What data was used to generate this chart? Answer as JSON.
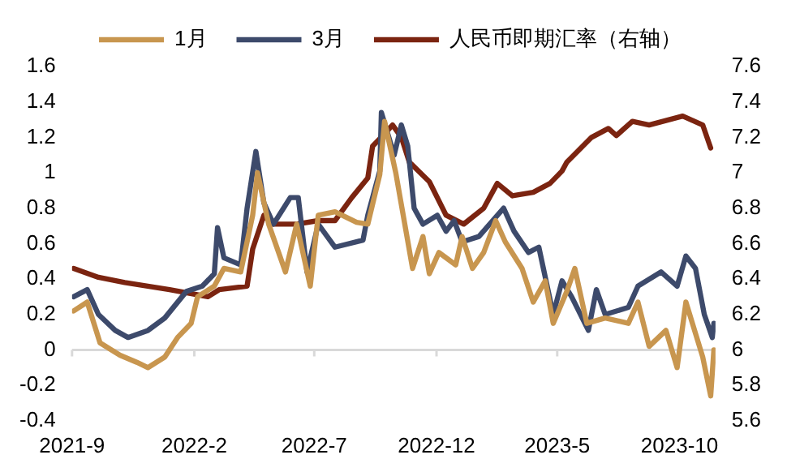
{
  "chart_data": {
    "type": "line",
    "legend": "top",
    "ref_lines": [
      {
        "axis": "y",
        "value": 0,
        "color": "#d9d9d9"
      }
    ],
    "marker": "none",
    "line_style": "solid",
    "grid": false,
    "xlim": [
      "2021-09",
      "2023-11-15"
    ],
    "xticks": [
      {
        "value": "2021-09",
        "label": "2021-9"
      },
      {
        "value": "2022-02",
        "label": "2022-2"
      },
      {
        "value": "2022-07",
        "label": "2022-7"
      },
      {
        "value": "2022-12",
        "label": "2022-12"
      },
      {
        "value": "2023-05",
        "label": "2023-5"
      },
      {
        "value": "2023-10",
        "label": "2023-10"
      }
    ],
    "ylim": [
      -0.4,
      1.6
    ],
    "yticks": [
      -0.4,
      -0.2,
      0,
      0.2,
      0.4,
      0.6,
      0.8,
      1,
      1.2,
      1.4,
      1.6
    ],
    "y2lim": [
      5.6,
      7.6
    ],
    "y2ticks": [
      5.6,
      5.8,
      6,
      6.2,
      6.4,
      6.6,
      6.8,
      7,
      7.2,
      7.4,
      7.6
    ],
    "series": [
      {
        "name": "1月",
        "color": "#c8964f",
        "x": [
          "2021-09-03",
          "2021-09-20",
          "2021-10-06",
          "2021-10-31",
          "2021-11-21",
          "2021-12-05",
          "2021-12-26",
          "2022-01-11",
          "2022-01-28",
          "2022-02-05",
          "2022-02-26",
          "2022-03-10",
          "2022-03-31",
          "2022-04-15",
          "2022-04-21",
          "2022-05-05",
          "2022-05-26",
          "2022-06-09",
          "2022-06-26",
          "2022-07-06",
          "2022-07-27",
          "2022-08-23",
          "2022-09-06",
          "2022-09-21",
          "2022-09-27",
          "2022-10-11",
          "2022-11-01",
          "2022-11-14",
          "2022-11-22",
          "2022-12-04",
          "2022-12-25",
          "2023-01-02",
          "2023-01-15",
          "2023-01-29",
          "2023-02-13",
          "2023-02-25",
          "2023-03-18",
          "2023-04-01",
          "2023-04-16",
          "2023-04-26",
          "2023-05-13",
          "2023-05-23",
          "2023-06-07",
          "2023-06-30",
          "2023-07-29",
          "2023-08-10",
          "2023-08-24",
          "2023-09-14",
          "2023-09-28",
          "2023-10-09",
          "2023-10-30",
          "2023-11-09",
          "2023-11-13"
        ],
        "values": [
          0.22,
          0.27,
          0.04,
          -0.03,
          -0.07,
          -0.1,
          -0.04,
          0.07,
          0.15,
          0.3,
          0.36,
          0.46,
          0.44,
          0.76,
          1.0,
          0.71,
          0.44,
          0.71,
          0.36,
          0.76,
          0.78,
          0.72,
          0.71,
          0.99,
          1.29,
          1.0,
          0.46,
          0.64,
          0.43,
          0.55,
          0.48,
          0.64,
          0.46,
          0.55,
          0.73,
          0.61,
          0.46,
          0.27,
          0.39,
          0.15,
          0.33,
          0.46,
          0.15,
          0.18,
          0.15,
          0.27,
          0.02,
          0.11,
          -0.1,
          0.27,
          -0.04,
          -0.26,
          0.0
        ]
      },
      {
        "name": "3月",
        "color": "#3d4a6b",
        "x": [
          "2021-09-03",
          "2021-09-20",
          "2021-10-04",
          "2021-10-25",
          "2021-11-10",
          "2021-12-05",
          "2021-12-26",
          "2022-01-22",
          "2022-02-11",
          "2022-02-26",
          "2022-03-02",
          "2022-03-10",
          "2022-03-31",
          "2022-04-08",
          "2022-04-19",
          "2022-04-29",
          "2022-05-11",
          "2022-06-01",
          "2022-06-11",
          "2022-06-22",
          "2022-07-06",
          "2022-07-27",
          "2022-08-31",
          "2022-09-06",
          "2022-09-21",
          "2022-09-23",
          "2022-10-09",
          "2022-10-18",
          "2022-10-26",
          "2022-11-03",
          "2022-11-14",
          "2022-12-02",
          "2022-12-13",
          "2022-12-23",
          "2023-01-02",
          "2023-01-23",
          "2023-02-23",
          "2023-03-08",
          "2023-03-26",
          "2023-04-08",
          "2023-04-26",
          "2023-05-07",
          "2023-05-19",
          "2023-06-09",
          "2023-06-19",
          "2023-06-30",
          "2023-07-29",
          "2023-08-10",
          "2023-09-08",
          "2023-09-28",
          "2023-10-09",
          "2023-10-21",
          "2023-11-01",
          "2023-11-11",
          "2023-11-13"
        ],
        "values": [
          0.3,
          0.34,
          0.2,
          0.11,
          0.07,
          0.11,
          0.18,
          0.33,
          0.36,
          0.43,
          0.69,
          0.52,
          0.48,
          0.8,
          1.12,
          0.83,
          0.71,
          0.86,
          0.86,
          0.44,
          0.71,
          0.58,
          0.62,
          0.76,
          1.01,
          1.34,
          1.1,
          1.27,
          1.15,
          0.8,
          0.71,
          0.76,
          0.67,
          0.73,
          0.61,
          0.64,
          0.8,
          0.67,
          0.55,
          0.58,
          0.2,
          0.39,
          0.3,
          0.11,
          0.34,
          0.2,
          0.24,
          0.36,
          0.44,
          0.36,
          0.53,
          0.46,
          0.2,
          0.07,
          0.15
        ]
      },
      {
        "name": "人民币即期汇率（右轴）",
        "color": "#7b2410",
        "axis": "y2",
        "x": [
          "2021-09-03",
          "2021-10-04",
          "2021-11-06",
          "2022-01-01",
          "2022-02-18",
          "2022-03-04",
          "2022-04-08",
          "2022-04-15",
          "2022-04-29",
          "2022-05-11",
          "2022-06-09",
          "2022-07-06",
          "2022-07-27",
          "2022-08-17",
          "2022-09-06",
          "2022-09-12",
          "2022-09-27",
          "2022-10-07",
          "2022-10-18",
          "2022-10-28",
          "2022-11-22",
          "2022-12-13",
          "2023-01-04",
          "2023-01-29",
          "2023-02-15",
          "2023-03-06",
          "2023-04-01",
          "2023-04-22",
          "2023-05-07",
          "2023-05-13",
          "2023-06-13",
          "2023-07-04",
          "2023-07-14",
          "2023-08-03",
          "2023-08-24",
          "2023-10-05",
          "2023-10-30",
          "2023-11-09"
        ],
        "values": [
          6.46,
          6.41,
          6.38,
          6.34,
          6.3,
          6.34,
          6.36,
          6.57,
          6.76,
          6.71,
          6.71,
          6.73,
          6.73,
          6.86,
          6.97,
          7.15,
          7.22,
          7.27,
          7.2,
          7.06,
          6.95,
          6.76,
          6.71,
          6.8,
          6.94,
          6.87,
          6.89,
          6.94,
          7.01,
          7.06,
          7.2,
          7.25,
          7.21,
          7.29,
          7.27,
          7.32,
          7.27,
          7.14
        ]
      }
    ]
  }
}
